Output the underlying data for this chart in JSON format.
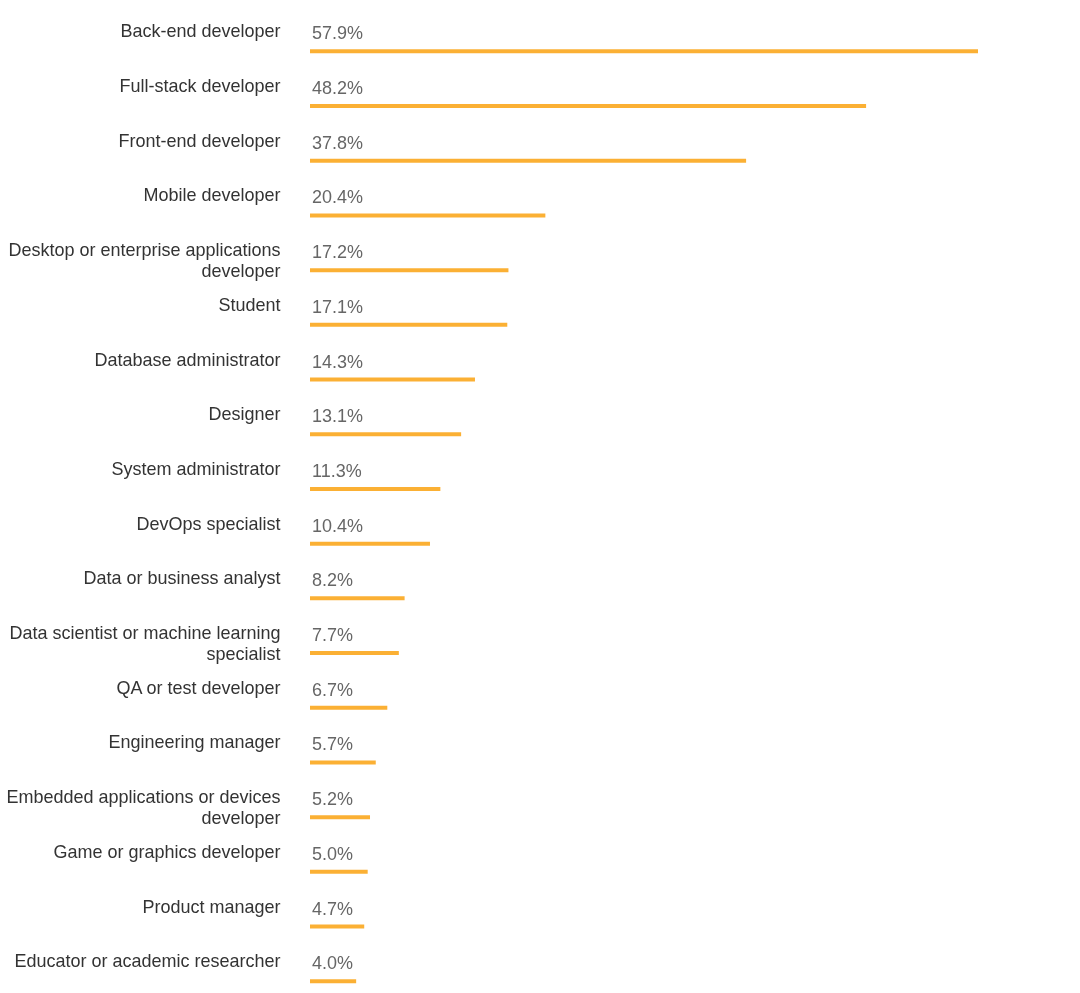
{
  "chart_data": {
    "type": "bar",
    "orientation": "horizontal",
    "color": "#fbb034",
    "categories": [
      "Back-end developer",
      "Full-stack developer",
      "Front-end developer",
      "Mobile developer",
      "Desktop or enterprise applications developer",
      "Student",
      "Database administrator",
      "Designer",
      "System administrator",
      "DevOps specialist",
      "Data or business analyst",
      "Data scientist or machine learning specialist",
      "QA or test developer",
      "Engineering manager",
      "Embedded applications or devices developer",
      "Game or graphics developer",
      "Product manager",
      "Educator or academic researcher"
    ],
    "values": [
      57.9,
      48.2,
      37.8,
      20.4,
      17.2,
      17.1,
      14.3,
      13.1,
      11.3,
      10.4,
      8.2,
      7.7,
      6.7,
      5.7,
      5.2,
      5.0,
      4.7,
      4.0
    ],
    "value_labels": [
      "57.9%",
      "48.2%",
      "37.8%",
      "20.4%",
      "17.2%",
      "17.1%",
      "14.3%",
      "13.1%",
      "11.3%",
      "10.4%",
      "8.2%",
      "7.7%",
      "6.7%",
      "5.7%",
      "5.2%",
      "5.0%",
      "4.7%",
      "4.0%"
    ],
    "grid": false
  }
}
